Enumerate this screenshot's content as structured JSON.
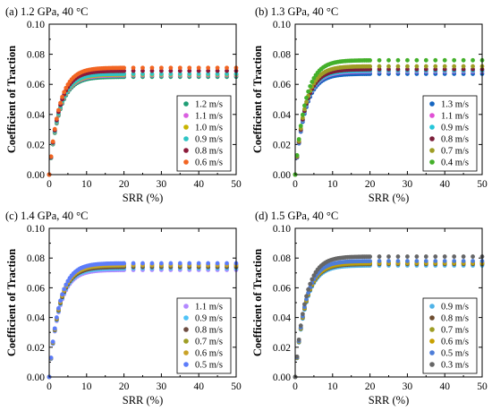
{
  "chart_data": [
    {
      "type": "scatter",
      "title": "(a) 1.2 GPa, 40 °C",
      "xlabel": "SRR (%)",
      "ylabel": "Coefficient of Traction",
      "xlim": [
        0,
        50
      ],
      "ylim": [
        0,
        0.1
      ],
      "xticks": [
        "0",
        "10",
        "20",
        "30",
        "40",
        "50"
      ],
      "yticks": [
        "0.00",
        "0.02",
        "0.04",
        "0.06",
        "0.08",
        "0.10"
      ],
      "legend_position": "lower-right",
      "grid": false,
      "series": [
        {
          "name": "1.2 m/s",
          "color": "#1f9e75",
          "plateau": 0.065
        },
        {
          "name": "1.1 m/s",
          "color": "#d95fe0",
          "plateau": 0.066
        },
        {
          "name": "1.0 m/s",
          "color": "#c8b400",
          "plateau": 0.0665
        },
        {
          "name": "0.9 m/s",
          "color": "#2ec4c4",
          "plateau": 0.067
        },
        {
          "name": "0.8 m/s",
          "color": "#8b1a3a",
          "plateau": 0.069
        },
        {
          "name": "0.6 m/s",
          "color": "#f26522",
          "plateau": 0.071
        }
      ]
    },
    {
      "type": "scatter",
      "title": "(b) 1.3 GPa, 40 °C",
      "xlabel": "SRR (%)",
      "ylabel": "Coefficient of Traction",
      "xlim": [
        0,
        50
      ],
      "ylim": [
        0,
        0.1
      ],
      "xticks": [
        "0",
        "10",
        "20",
        "30",
        "40",
        "50"
      ],
      "yticks": [
        "0.00",
        "0.02",
        "0.04",
        "0.06",
        "0.08",
        "0.10"
      ],
      "legend_position": "lower-right",
      "grid": false,
      "series": [
        {
          "name": "1.3 m/s",
          "color": "#1565c0",
          "plateau": 0.067
        },
        {
          "name": "1.1 m/s",
          "color": "#e04fd4",
          "plateau": 0.0685
        },
        {
          "name": "0.9 m/s",
          "color": "#26c6da",
          "plateau": 0.069
        },
        {
          "name": "0.8 m/s",
          "color": "#7b1f3a",
          "plateau": 0.07
        },
        {
          "name": "0.7 m/s",
          "color": "#9e9d24",
          "plateau": 0.072
        },
        {
          "name": "0.4 m/s",
          "color": "#43b02a",
          "plateau": 0.076
        }
      ]
    },
    {
      "type": "scatter",
      "title": "(c) 1.4 GPa, 40 °C",
      "xlabel": "SRR (%)",
      "ylabel": "Coefficient of Traction",
      "xlim": [
        0,
        50
      ],
      "ylim": [
        0,
        0.1
      ],
      "xticks": [
        "0",
        "10",
        "20",
        "30",
        "40",
        "50"
      ],
      "yticks": [
        "0.00",
        "0.02",
        "0.04",
        "0.06",
        "0.08",
        "0.10"
      ],
      "legend_position": "lower-right",
      "grid": false,
      "series": [
        {
          "name": "1.1 m/s",
          "color": "#b388ff",
          "plateau": 0.072
        },
        {
          "name": "0.9 m/s",
          "color": "#4fc3f7",
          "plateau": 0.073
        },
        {
          "name": "0.8 m/s",
          "color": "#6d4c41",
          "plateau": 0.074
        },
        {
          "name": "0.7 m/s",
          "color": "#9e9d24",
          "plateau": 0.075
        },
        {
          "name": "0.6 m/s",
          "color": "#c9a227",
          "plateau": 0.0755
        },
        {
          "name": "0.5 m/s",
          "color": "#5c7cfa",
          "plateau": 0.0765
        }
      ]
    },
    {
      "type": "scatter",
      "title": "(d) 1.5 GPa, 40 °C",
      "xlabel": "SRR (%)",
      "ylabel": "Coefficient of Traction",
      "xlim": [
        0,
        50
      ],
      "ylim": [
        0,
        0.1
      ],
      "xticks": [
        "0",
        "10",
        "20",
        "30",
        "40",
        "50"
      ],
      "yticks": [
        "0.00",
        "0.02",
        "0.04",
        "0.06",
        "0.08",
        "0.10"
      ],
      "legend_position": "lower-right",
      "grid": false,
      "series": [
        {
          "name": "0.9 m/s",
          "color": "#4fb3e8",
          "plateau": 0.075
        },
        {
          "name": "0.8 m/s",
          "color": "#6d4c2f",
          "plateau": 0.076
        },
        {
          "name": "0.7 m/s",
          "color": "#9e9d24",
          "plateau": 0.0765
        },
        {
          "name": "0.6 m/s",
          "color": "#c8a000",
          "plateau": 0.077
        },
        {
          "name": "0.5 m/s",
          "color": "#4d7dd8",
          "plateau": 0.078
        },
        {
          "name": "0.3 m/s",
          "color": "#666666",
          "plateau": 0.081
        }
      ]
    }
  ]
}
